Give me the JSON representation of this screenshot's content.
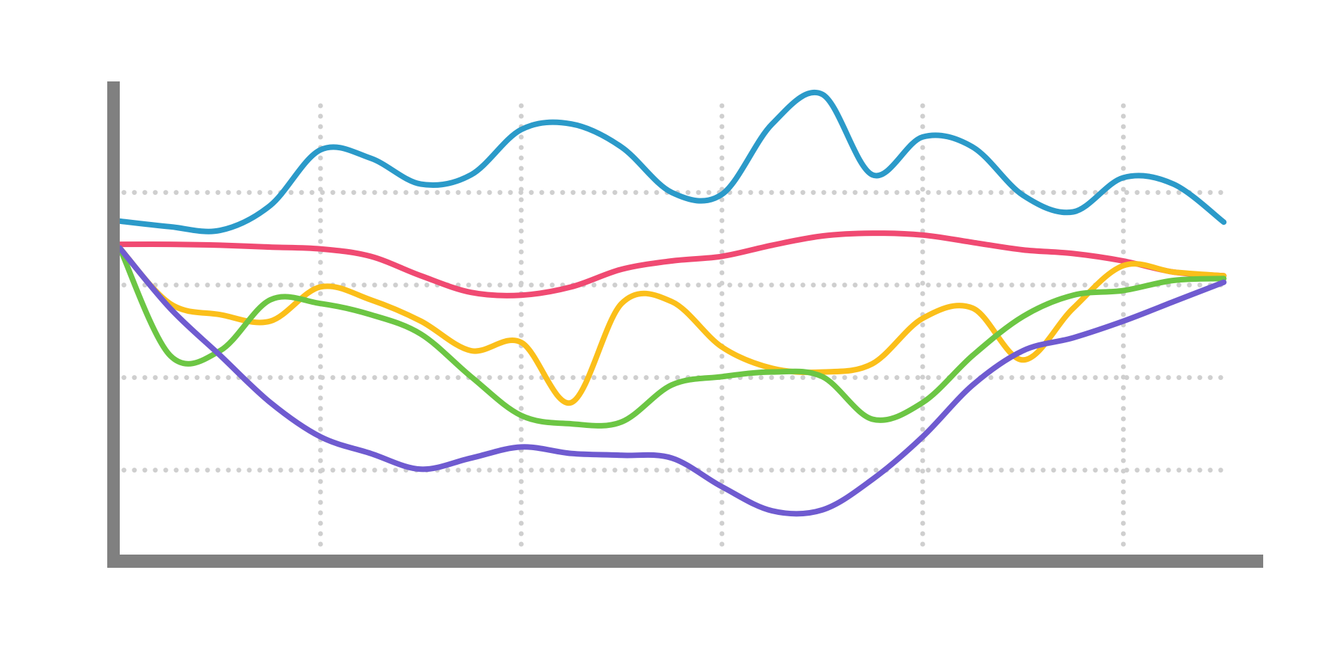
{
  "chart_data": {
    "type": "line",
    "grid": true,
    "xlim": [
      0,
      5.53
    ],
    "ylim": [
      0,
      5.2
    ],
    "xticks": [
      1,
      2,
      3,
      4,
      5
    ],
    "yticks": [
      1,
      2,
      3,
      4
    ],
    "x": [
      0,
      0.25,
      0.5,
      0.75,
      1,
      1.25,
      1.5,
      1.75,
      2,
      2.25,
      2.5,
      2.75,
      3,
      3.25,
      3.5,
      3.75,
      4,
      4.25,
      4.5,
      4.75,
      5,
      5.25,
      5.5
    ],
    "series": [
      {
        "color": "#2b9ac9",
        "values": [
          3.69,
          3.63,
          3.59,
          3.86,
          4.46,
          4.37,
          4.09,
          4.19,
          4.68,
          4.74,
          4.49,
          4.0,
          3.98,
          4.74,
          5.06,
          4.19,
          4.6,
          4.49,
          3.97,
          3.79,
          4.16,
          4.09,
          3.68
        ]
      },
      {
        "color": "#f04a72",
        "values": [
          3.44,
          3.44,
          3.43,
          3.41,
          3.39,
          3.31,
          3.1,
          2.92,
          2.89,
          2.98,
          3.17,
          3.26,
          3.31,
          3.43,
          3.53,
          3.56,
          3.54,
          3.46,
          3.38,
          3.34,
          3.26,
          3.14,
          3.1
        ]
      },
      {
        "color": "#fbbf1a",
        "values": [
          3.4,
          2.8,
          2.68,
          2.61,
          2.98,
          2.84,
          2.61,
          2.29,
          2.38,
          1.73,
          2.8,
          2.82,
          2.33,
          2.1,
          2.06,
          2.15,
          2.64,
          2.75,
          2.19,
          2.75,
          3.21,
          3.14,
          3.1
        ]
      },
      {
        "color": "#6cc644",
        "values": [
          3.4,
          2.24,
          2.29,
          2.84,
          2.8,
          2.68,
          2.47,
          2.01,
          1.59,
          1.5,
          1.52,
          1.92,
          2.01,
          2.06,
          2.01,
          1.55,
          1.73,
          2.24,
          2.66,
          2.89,
          2.94,
          3.05,
          3.07
        ]
      },
      {
        "color": "#6f5bd0",
        "values": [
          3.4,
          2.75,
          2.24,
          1.73,
          1.36,
          1.18,
          1.01,
          1.13,
          1.25,
          1.18,
          1.16,
          1.13,
          0.82,
          0.56,
          0.57,
          0.9,
          1.36,
          1.92,
          2.29,
          2.43,
          2.61,
          2.82,
          3.03
        ]
      }
    ]
  }
}
